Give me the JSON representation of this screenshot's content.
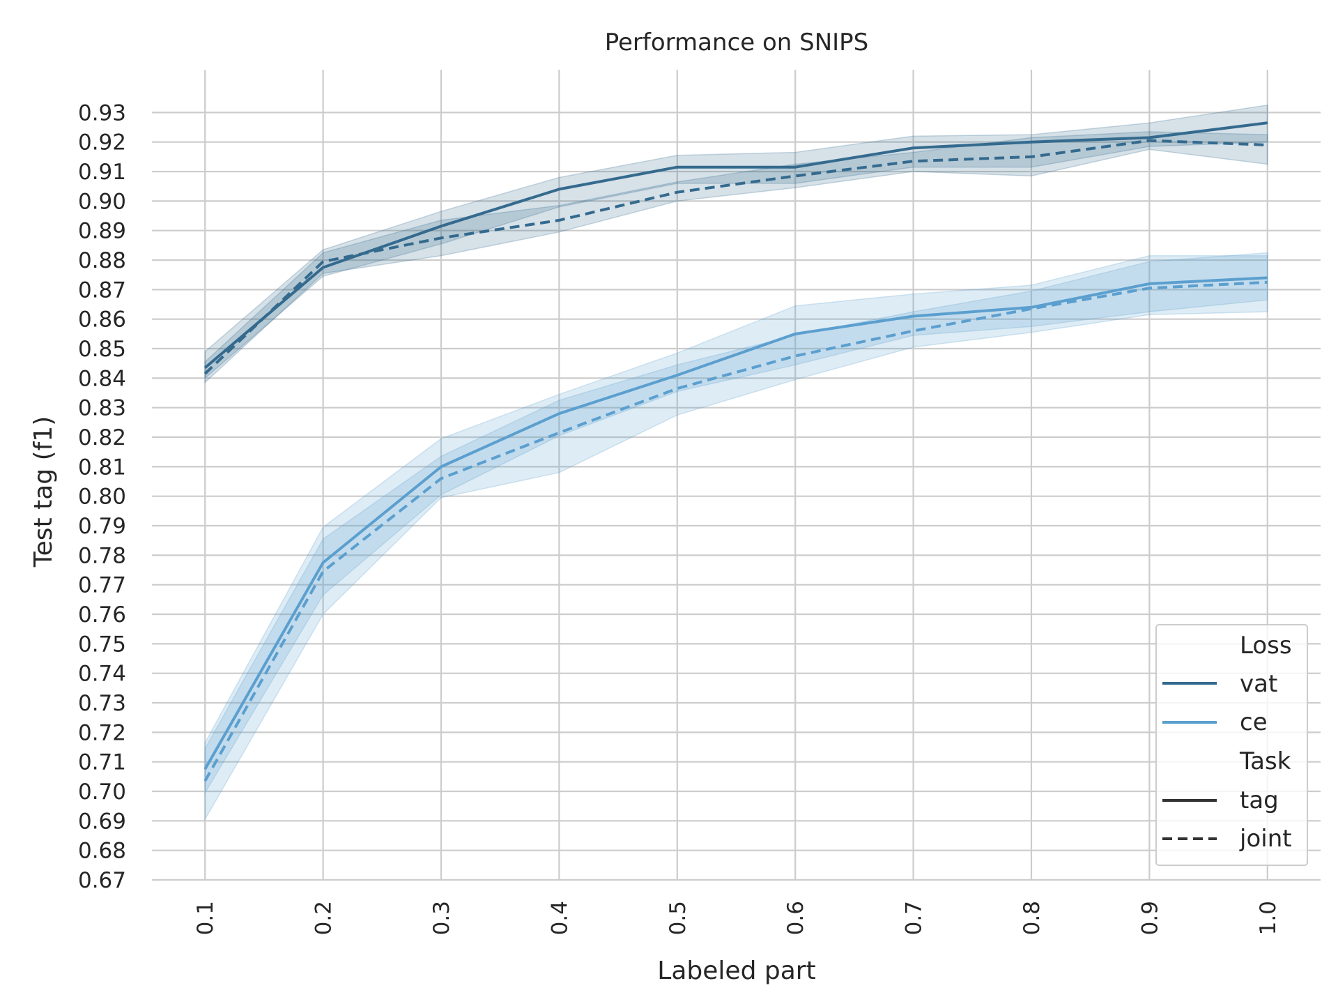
{
  "chart_data": {
    "type": "line",
    "title": "Performance on SNIPS",
    "xlabel": "Labeled part",
    "ylabel": "Test tag (f1)",
    "x": [
      0.1,
      0.2,
      0.3,
      0.4,
      0.5,
      0.6,
      0.7,
      0.8,
      0.9,
      1.0
    ],
    "x_tick_labels": [
      "0.1",
      "0.2",
      "0.3",
      "0.4",
      "0.5",
      "0.6",
      "0.7",
      "0.8",
      "0.9",
      "1.0"
    ],
    "y_ticks": [
      0.67,
      0.68,
      0.69,
      0.7,
      0.71,
      0.72,
      0.73,
      0.74,
      0.75,
      0.76,
      0.77,
      0.78,
      0.79,
      0.8,
      0.81,
      0.82,
      0.83,
      0.84,
      0.85,
      0.86,
      0.87,
      0.88,
      0.89,
      0.9,
      0.91,
      0.92,
      0.93
    ],
    "y_tick_labels": [
      "0.67",
      "0.68",
      "0.69",
      "0.70",
      "0.71",
      "0.72",
      "0.73",
      "0.74",
      "0.75",
      "0.76",
      "0.77",
      "0.78",
      "0.79",
      "0.80",
      "0.81",
      "0.82",
      "0.83",
      "0.84",
      "0.85",
      "0.86",
      "0.87",
      "0.88",
      "0.89",
      "0.90",
      "0.91",
      "0.92",
      "0.93"
    ],
    "xlim": [
      0.055,
      1.045
    ],
    "ylim": [
      0.67,
      0.9445
    ],
    "grid": true,
    "legend_position": "bottom-right",
    "legend": {
      "loss_title": "Loss",
      "loss_entries": [
        {
          "label": "vat",
          "color": "#346a8e"
        },
        {
          "label": "ce",
          "color": "#5b9fcf"
        }
      ],
      "task_title": "Task",
      "task_entries": [
        {
          "label": "tag",
          "style": "solid",
          "color": "#333333"
        },
        {
          "label": "joint",
          "style": "dashed",
          "color": "#333333"
        }
      ]
    },
    "series": [
      {
        "loss": "vat",
        "task": "tag",
        "color": "#346a8e",
        "style": "solid",
        "values": [
          0.8435,
          0.8775,
          0.8915,
          0.904,
          0.9115,
          0.9115,
          0.918,
          0.92,
          0.9215,
          0.9265
        ],
        "lower": [
          0.84,
          0.8745,
          0.8855,
          0.898,
          0.906,
          0.906,
          0.9115,
          0.9115,
          0.9185,
          0.92
        ],
        "upper": [
          0.849,
          0.8835,
          0.8965,
          0.908,
          0.9155,
          0.9165,
          0.922,
          0.9225,
          0.9265,
          0.9325
        ]
      },
      {
        "loss": "vat",
        "task": "joint",
        "color": "#346a8e",
        "style": "dashed",
        "values": [
          0.8415,
          0.8795,
          0.8875,
          0.8935,
          0.903,
          0.9085,
          0.9135,
          0.915,
          0.9205,
          0.919
        ],
        "lower": [
          0.8385,
          0.8755,
          0.8815,
          0.8895,
          0.9,
          0.9045,
          0.91,
          0.9085,
          0.9175,
          0.9125
        ],
        "upper": [
          0.8455,
          0.8825,
          0.8935,
          0.8985,
          0.9065,
          0.9125,
          0.9165,
          0.9215,
          0.9235,
          0.9225
        ]
      },
      {
        "loss": "ce",
        "task": "tag",
        "color": "#5b9fcf",
        "style": "solid",
        "values": [
          0.7075,
          0.7775,
          0.81,
          0.828,
          0.841,
          0.855,
          0.861,
          0.864,
          0.872,
          0.874
        ],
        "lower": [
          0.6995,
          0.7665,
          0.8005,
          0.8205,
          0.8355,
          0.8445,
          0.8545,
          0.8575,
          0.8625,
          0.8665
        ],
        "upper": [
          0.7165,
          0.7895,
          0.8195,
          0.8345,
          0.8485,
          0.8645,
          0.8685,
          0.8715,
          0.8815,
          0.8815
        ]
      },
      {
        "loss": "ce",
        "task": "joint",
        "color": "#5b9fcf",
        "style": "dashed",
        "values": [
          0.7035,
          0.7745,
          0.806,
          0.8215,
          0.8365,
          0.8475,
          0.856,
          0.8635,
          0.8705,
          0.8725
        ],
        "lower": [
          0.6905,
          0.76,
          0.7995,
          0.808,
          0.8275,
          0.8395,
          0.8505,
          0.8555,
          0.8615,
          0.8625
        ],
        "upper": [
          0.7145,
          0.7855,
          0.8135,
          0.8325,
          0.8445,
          0.8545,
          0.8625,
          0.8695,
          0.8795,
          0.8825
        ]
      }
    ]
  }
}
